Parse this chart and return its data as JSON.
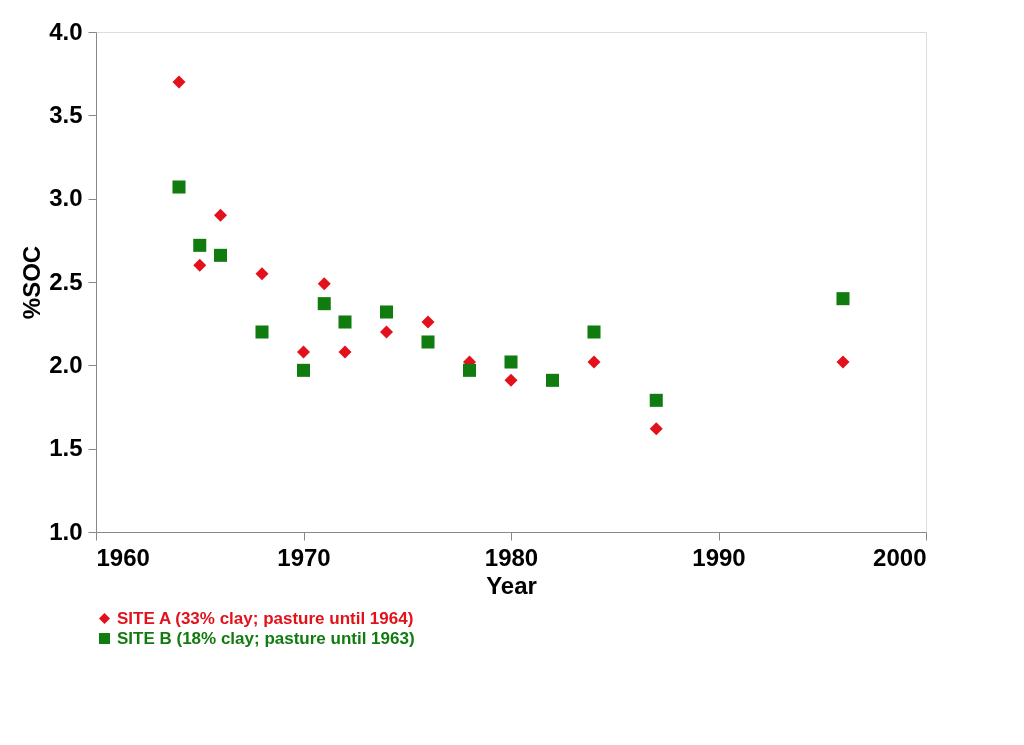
{
  "chart_data": {
    "type": "scatter",
    "xlabel": "Year",
    "ylabel": "%SOC",
    "xlim": [
      1960,
      2000
    ],
    "xticks": [
      1960,
      1970,
      1980,
      1990,
      2000
    ],
    "ylim": [
      1.0,
      4.0
    ],
    "yticks": [
      {
        "value": 1.0,
        "label": "1.0"
      },
      {
        "value": 1.5,
        "label": "1.5"
      },
      {
        "value": 2.0,
        "label": "2.0"
      },
      {
        "value": 2.5,
        "label": "2.5"
      },
      {
        "value": 3.0,
        "label": "3.0"
      },
      {
        "value": 3.5,
        "label": "3.5"
      },
      {
        "value": 4.0,
        "label": "4.0"
      }
    ],
    "grid": false,
    "legend": "bottom left",
    "series": [
      {
        "name": "SITE A (33% clay; pasture until 1964)",
        "color": "#e3111b",
        "marker": "diamond",
        "x": [
          1964,
          1965,
          1966,
          1968,
          1970,
          1971,
          1972,
          1974,
          1976,
          1978,
          1980,
          1984,
          1987,
          1996
        ],
        "values": [
          3.7,
          2.6,
          2.9,
          2.55,
          2.08,
          2.49,
          2.08,
          2.2,
          2.26,
          2.02,
          1.91,
          2.02,
          1.62,
          2.02
        ]
      },
      {
        "name": "SITE B (18% clay; pasture until 1963)",
        "color": "#107c10",
        "marker": "square",
        "x": [
          1964,
          1965,
          1966,
          1968,
          1970,
          1971,
          1972,
          1974,
          1976,
          1978,
          1980,
          1982,
          1984,
          1987,
          1996
        ],
        "values": [
          3.07,
          2.72,
          2.66,
          2.2,
          1.97,
          2.37,
          2.26,
          2.32,
          2.14,
          1.97,
          2.02,
          1.91,
          2.2,
          1.79,
          2.4
        ]
      }
    ]
  }
}
